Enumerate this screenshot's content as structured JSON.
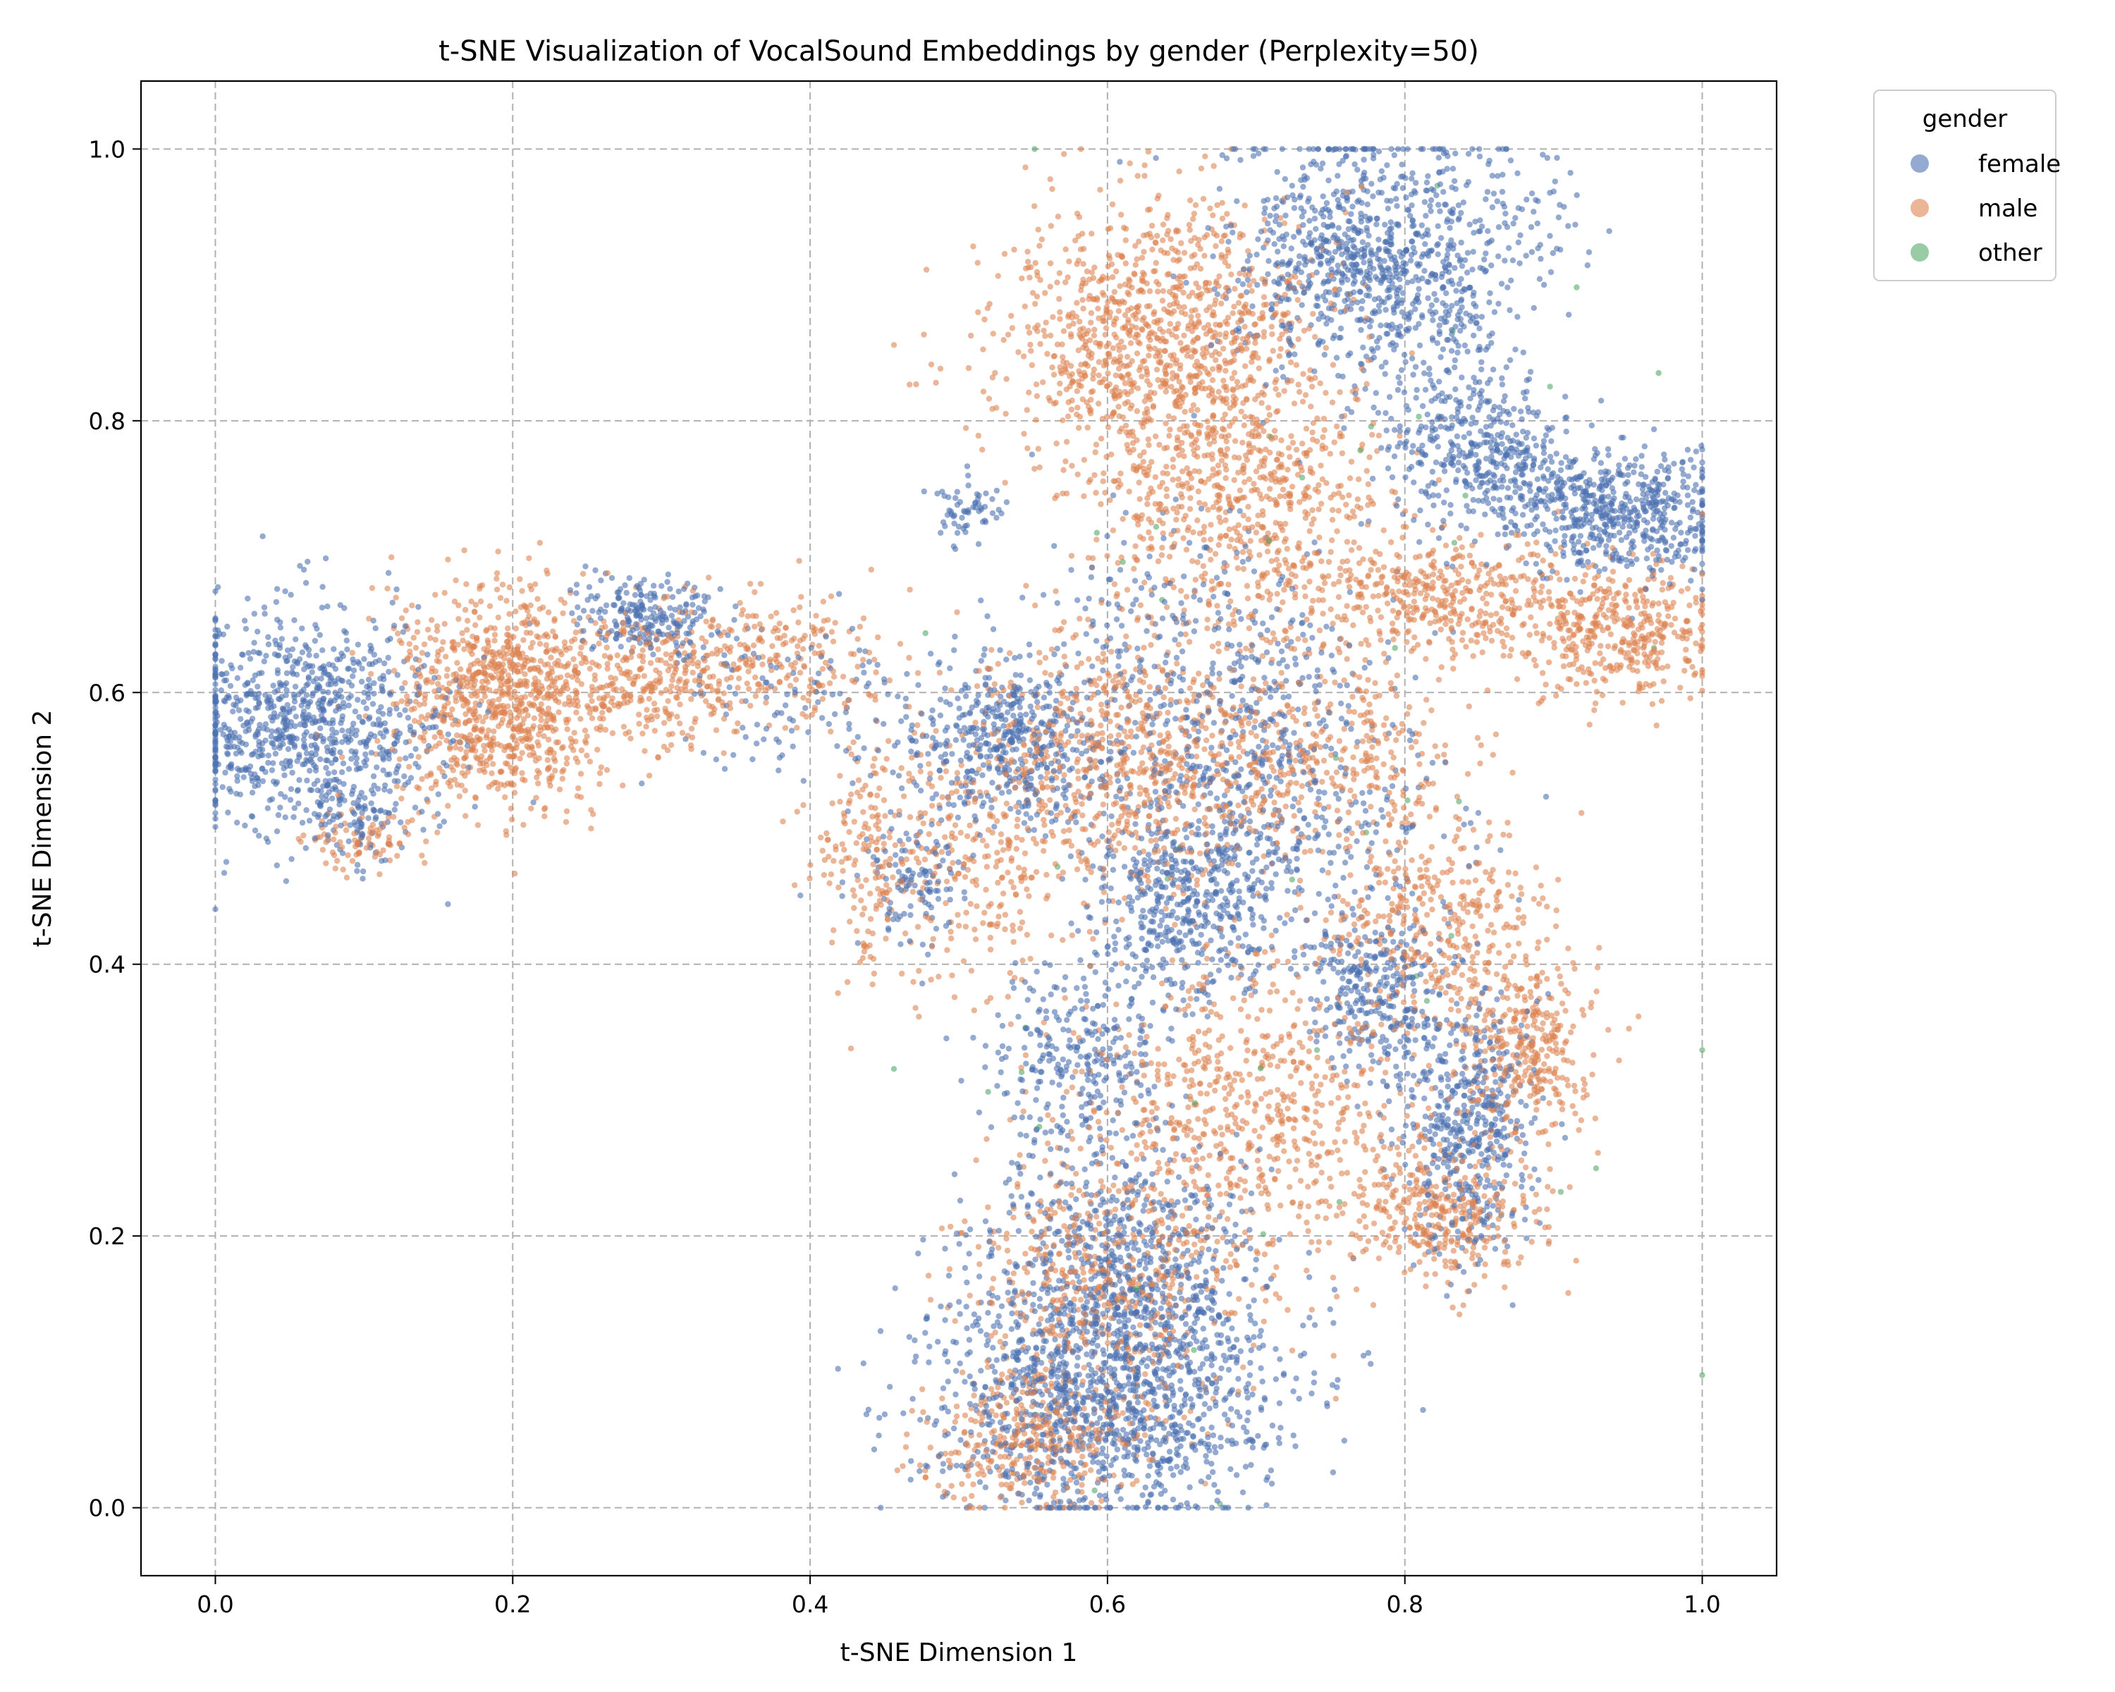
{
  "chart_data": {
    "type": "scatter",
    "title": "t-SNE Visualization of VocalSound Embeddings by gender (Perplexity=50)",
    "xlabel": "t-SNE Dimension 1",
    "ylabel": "t-SNE Dimension 2",
    "xlim": [
      -0.05,
      1.05
    ],
    "ylim": [
      -0.05,
      1.05
    ],
    "xticks": [
      "0.0",
      "0.2",
      "0.4",
      "0.6",
      "0.8",
      "1.0"
    ],
    "yticks": [
      "0.0",
      "0.2",
      "0.4",
      "0.6",
      "0.8",
      "1.0"
    ],
    "grid": true,
    "legend": {
      "title": "gender",
      "placement": "outside-top-right",
      "entries": [
        {
          "name": "female",
          "color": "#4c72b0"
        },
        {
          "name": "male",
          "color": "#dd8452"
        },
        {
          "name": "other",
          "color": "#55a868"
        }
      ]
    },
    "point_alpha": 0.6,
    "series": [
      {
        "name": "female",
        "color": "#4c72b0",
        "clusters": [
          {
            "center": [
              0.06,
              0.58
            ],
            "spread": [
              0.045,
              0.04
            ],
            "count": 900
          },
          {
            "center": [
              0.1,
              0.51
            ],
            "spread": [
              0.02,
              0.015
            ],
            "count": 80
          },
          {
            "center": [
              0.29,
              0.655
            ],
            "spread": [
              0.025,
              0.015
            ],
            "count": 220
          },
          {
            "center": [
              0.505,
              0.735
            ],
            "spread": [
              0.012,
              0.012
            ],
            "count": 60
          },
          {
            "center": [
              0.78,
              0.92
            ],
            "spread": [
              0.05,
              0.045
            ],
            "count": 1000
          },
          {
            "center": [
              0.84,
              0.79
            ],
            "spread": [
              0.03,
              0.03
            ],
            "count": 300
          },
          {
            "center": [
              0.95,
              0.73
            ],
            "spread": [
              0.035,
              0.02
            ],
            "count": 450
          },
          {
            "center": [
              0.89,
              0.75
            ],
            "spread": [
              0.04,
              0.025
            ],
            "count": 250
          },
          {
            "center": [
              0.53,
              0.565
            ],
            "spread": [
              0.03,
              0.03
            ],
            "count": 450
          },
          {
            "center": [
              0.47,
              0.46
            ],
            "spread": [
              0.02,
              0.025
            ],
            "count": 120
          },
          {
            "center": [
              0.65,
              0.44
            ],
            "spread": [
              0.03,
              0.04
            ],
            "count": 450
          },
          {
            "center": [
              0.78,
              0.38
            ],
            "spread": [
              0.025,
              0.03
            ],
            "count": 300
          },
          {
            "center": [
              0.84,
              0.28
            ],
            "spread": [
              0.025,
              0.05
            ],
            "count": 500
          },
          {
            "center": [
              0.58,
              0.33
            ],
            "spread": [
              0.03,
              0.03
            ],
            "count": 250
          },
          {
            "center": [
              0.6,
              0.08
            ],
            "spread": [
              0.06,
              0.045
            ],
            "count": 1200
          },
          {
            "center": [
              0.61,
              0.18
            ],
            "spread": [
              0.05,
              0.05
            ],
            "count": 700
          },
          {
            "center": [
              0.7,
              0.52
            ],
            "spread": [
              0.06,
              0.05
            ],
            "count": 500
          },
          {
            "center": [
              0.66,
              0.63
            ],
            "spread": [
              0.06,
              0.05
            ],
            "count": 300
          },
          {
            "center": [
              0.39,
              0.59
            ],
            "spread": [
              0.04,
              0.03
            ],
            "count": 120
          }
        ]
      },
      {
        "name": "male",
        "color": "#dd8452",
        "clusters": [
          {
            "center": [
              0.19,
              0.595
            ],
            "spread": [
              0.035,
              0.04
            ],
            "count": 900
          },
          {
            "center": [
              0.1,
              0.49
            ],
            "spread": [
              0.02,
              0.012
            ],
            "count": 80
          },
          {
            "center": [
              0.29,
              0.61
            ],
            "spread": [
              0.04,
              0.025
            ],
            "count": 350
          },
          {
            "center": [
              0.38,
              0.625
            ],
            "spread": [
              0.035,
              0.025
            ],
            "count": 200
          },
          {
            "center": [
              0.64,
              0.86
            ],
            "spread": [
              0.055,
              0.05
            ],
            "count": 1100
          },
          {
            "center": [
              0.69,
              0.74
            ],
            "spread": [
              0.05,
              0.05
            ],
            "count": 600
          },
          {
            "center": [
              0.83,
              0.67
            ],
            "spread": [
              0.06,
              0.025
            ],
            "count": 500
          },
          {
            "center": [
              0.95,
              0.64
            ],
            "spread": [
              0.03,
              0.025
            ],
            "count": 350
          },
          {
            "center": [
              0.62,
              0.55
            ],
            "spread": [
              0.06,
              0.05
            ],
            "count": 800
          },
          {
            "center": [
              0.44,
              0.48
            ],
            "spread": [
              0.02,
              0.04
            ],
            "count": 150
          },
          {
            "center": [
              0.82,
              0.43
            ],
            "spread": [
              0.035,
              0.04
            ],
            "count": 350
          },
          {
            "center": [
              0.88,
              0.34
            ],
            "spread": [
              0.025,
              0.035
            ],
            "count": 350
          },
          {
            "center": [
              0.82,
              0.22
            ],
            "spread": [
              0.035,
              0.025
            ],
            "count": 350
          },
          {
            "center": [
              0.7,
              0.3
            ],
            "spread": [
              0.06,
              0.06
            ],
            "count": 650
          },
          {
            "center": [
              0.6,
              0.17
            ],
            "spread": [
              0.05,
              0.05
            ],
            "count": 550
          },
          {
            "center": [
              0.55,
              0.05
            ],
            "spread": [
              0.035,
              0.025
            ],
            "count": 350
          },
          {
            "center": [
              0.76,
              0.55
            ],
            "spread": [
              0.04,
              0.03
            ],
            "count": 250
          },
          {
            "center": [
              0.51,
              0.48
            ],
            "spread": [
              0.04,
              0.05
            ],
            "count": 250
          }
        ]
      },
      {
        "name": "other",
        "color": "#55a868",
        "clusters": [
          {
            "center": [
              0.7,
              0.45
            ],
            "spread": [
              0.15,
              0.25
            ],
            "count": 40
          },
          {
            "center": [
              0.85,
              0.8
            ],
            "spread": [
              0.08,
              0.08
            ],
            "count": 10
          }
        ]
      }
    ]
  }
}
